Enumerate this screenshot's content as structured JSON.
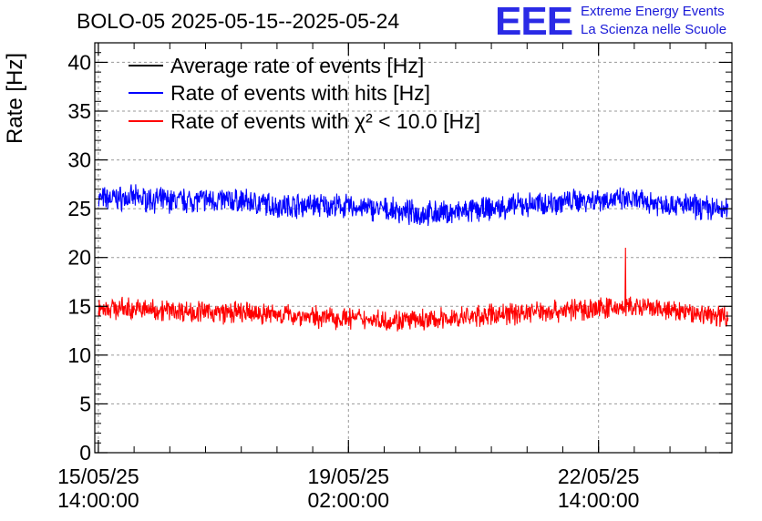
{
  "header": {
    "title": "BOLO-05 2025-05-15--2025-05-24",
    "logo_text": "EEE",
    "logo_line1": "Extreme Energy Events",
    "logo_line2": "La Scienza nelle Scuole"
  },
  "colors": {
    "average": "#000000",
    "hits": "#0000ff",
    "chi2": "#ff0000",
    "grid": "#9a9a9a",
    "logo": "#2a2ae6"
  },
  "chart_data": {
    "type": "line",
    "title": "BOLO-05 2025-05-15--2025-05-24",
    "ylabel": "Rate [Hz]",
    "xlabel": "",
    "ylim": [
      0,
      42
    ],
    "yticks": [
      0,
      5,
      10,
      15,
      20,
      25,
      30,
      35,
      40
    ],
    "x_axis": {
      "kind": "datetime",
      "range": [
        "2025-05-15 12:48:00",
        "2025-05-24 10:48:00"
      ],
      "ticks": [
        {
          "at": "2025-05-15 14:00:00",
          "label_date": "15/05/25",
          "label_time": "14:00:00"
        },
        {
          "at": "2025-05-19 02:00:00",
          "label_date": "19/05/25",
          "label_time": "02:00:00"
        },
        {
          "at": "2025-05-22 14:00:00",
          "label_date": "22/05/25",
          "label_time": "14:00:00"
        }
      ]
    },
    "grid": true,
    "legend_position": "top-left",
    "series": [
      {
        "name": "Average rate of events [Hz]",
        "color": "#000000",
        "points": []
      },
      {
        "name": "Rate of events with hits [Hz]",
        "color": "#0000ff",
        "noise_amplitude": 1.0,
        "points": [
          [
            "2025-05-15 14:00",
            26.0
          ],
          [
            "2025-05-16 02:00",
            26.1
          ],
          [
            "2025-05-16 14:00",
            25.8
          ],
          [
            "2025-05-17 02:00",
            25.9
          ],
          [
            "2025-05-17 14:00",
            25.8
          ],
          [
            "2025-05-18 02:00",
            25.3
          ],
          [
            "2025-05-18 14:00",
            25.4
          ],
          [
            "2025-05-19 02:00",
            25.2
          ],
          [
            "2025-05-19 14:00",
            24.9
          ],
          [
            "2025-05-20 02:00",
            24.5
          ],
          [
            "2025-05-20 14:00",
            24.6
          ],
          [
            "2025-05-21 02:00",
            25.0
          ],
          [
            "2025-05-21 14:00",
            25.4
          ],
          [
            "2025-05-22 02:00",
            25.7
          ],
          [
            "2025-05-22 14:00",
            26.0
          ],
          [
            "2025-05-23 02:00",
            25.8
          ],
          [
            "2025-05-23 14:00",
            25.5
          ],
          [
            "2025-05-24 02:00",
            25.1
          ],
          [
            "2025-05-24 09:30",
            24.8
          ]
        ]
      },
      {
        "name": "Rate of events with χ² < 10.0 [Hz]",
        "color": "#ff0000",
        "noise_amplitude": 0.9,
        "spike": {
          "at": "2025-05-22 23:00",
          "value": 21.0
        },
        "points": [
          [
            "2025-05-15 14:00",
            14.9
          ],
          [
            "2025-05-16 02:00",
            14.7
          ],
          [
            "2025-05-16 14:00",
            14.6
          ],
          [
            "2025-05-17 02:00",
            14.4
          ],
          [
            "2025-05-17 14:00",
            14.3
          ],
          [
            "2025-05-18 02:00",
            14.2
          ],
          [
            "2025-05-18 14:00",
            13.9
          ],
          [
            "2025-05-19 02:00",
            13.8
          ],
          [
            "2025-05-19 14:00",
            13.6
          ],
          [
            "2025-05-20 02:00",
            13.5
          ],
          [
            "2025-05-20 14:00",
            13.8
          ],
          [
            "2025-05-21 02:00",
            14.1
          ],
          [
            "2025-05-21 14:00",
            14.4
          ],
          [
            "2025-05-22 02:00",
            14.6
          ],
          [
            "2025-05-22 14:00",
            14.8
          ],
          [
            "2025-05-23 02:00",
            14.9
          ],
          [
            "2025-05-23 14:00",
            14.5
          ],
          [
            "2025-05-24 02:00",
            14.2
          ],
          [
            "2025-05-24 09:30",
            14.0
          ]
        ]
      }
    ]
  }
}
